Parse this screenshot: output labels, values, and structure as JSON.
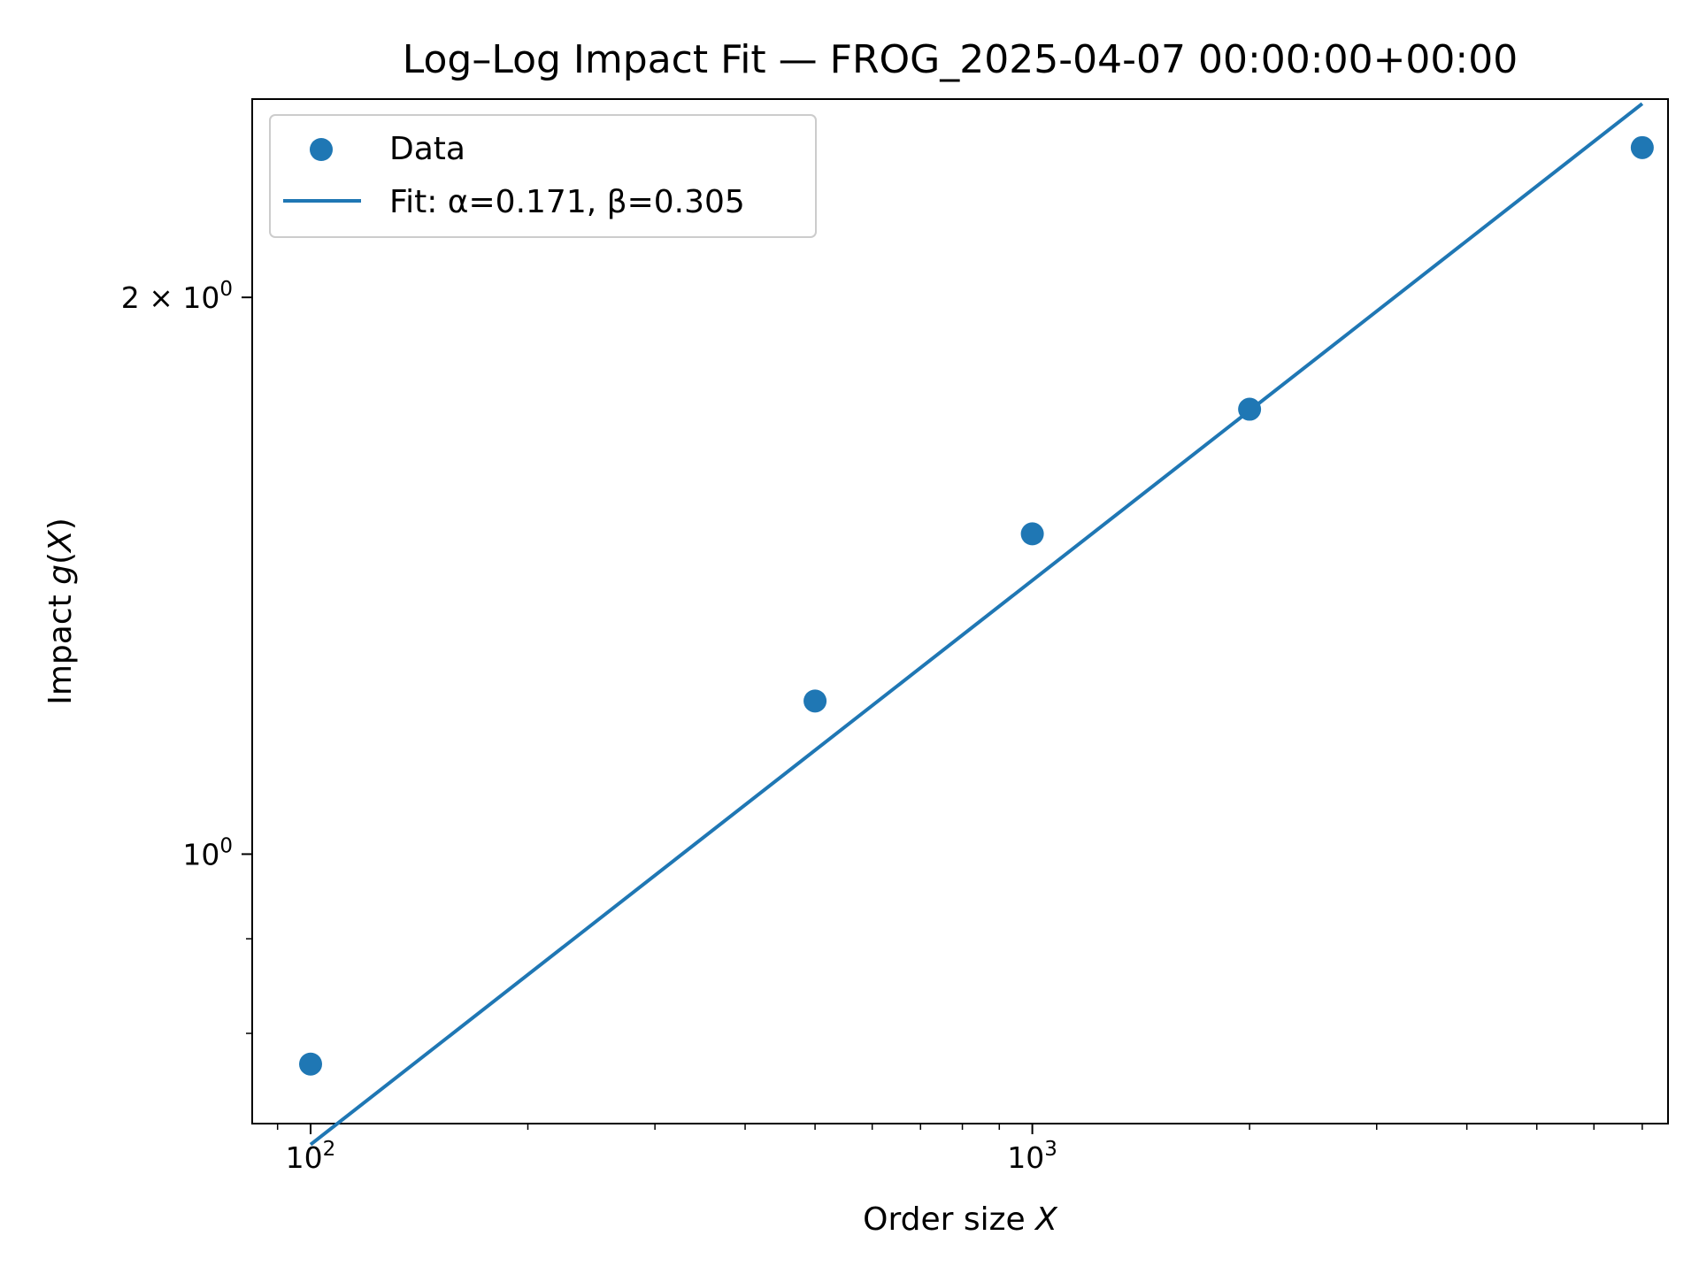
{
  "chart_data": {
    "type": "scatter",
    "title": "Log–Log Impact Fit — FROG_2025-04-07 00:00:00+00:00",
    "xlabel": {
      "prefix": "Order size ",
      "var": "X"
    },
    "ylabel": {
      "prefix": "Impact ",
      "var": "g",
      "suffix_open": "(",
      "arg": "X",
      "suffix_close": ")"
    },
    "xscale": "log",
    "yscale": "log",
    "xlim": [
      83,
      7600
    ],
    "ylim": [
      0.715,
      2.56
    ],
    "x_ticks": [
      {
        "value": 100,
        "base": "10",
        "exp": "2"
      },
      {
        "value": 1000,
        "base": "10",
        "exp": "3"
      }
    ],
    "y_ticks": [
      {
        "value": 1,
        "base": "10",
        "exp": "0"
      },
      {
        "value": 2,
        "base": "2 × 10",
        "exp": "0"
      }
    ],
    "series": [
      {
        "name": "Data",
        "kind": "scatter",
        "color": "#1f77b4",
        "x": [
          100,
          500,
          1000,
          2000,
          7000
        ],
        "y": [
          0.77,
          1.21,
          1.49,
          1.74,
          2.41
        ]
      },
      {
        "name": "Fit: α=0.171, β=0.305",
        "kind": "line",
        "color": "#1f77b4",
        "alpha": 0.171,
        "beta": 0.305,
        "x": [
          100,
          7000
        ]
      }
    ],
    "legend_position": "top-left",
    "grid": false
  }
}
